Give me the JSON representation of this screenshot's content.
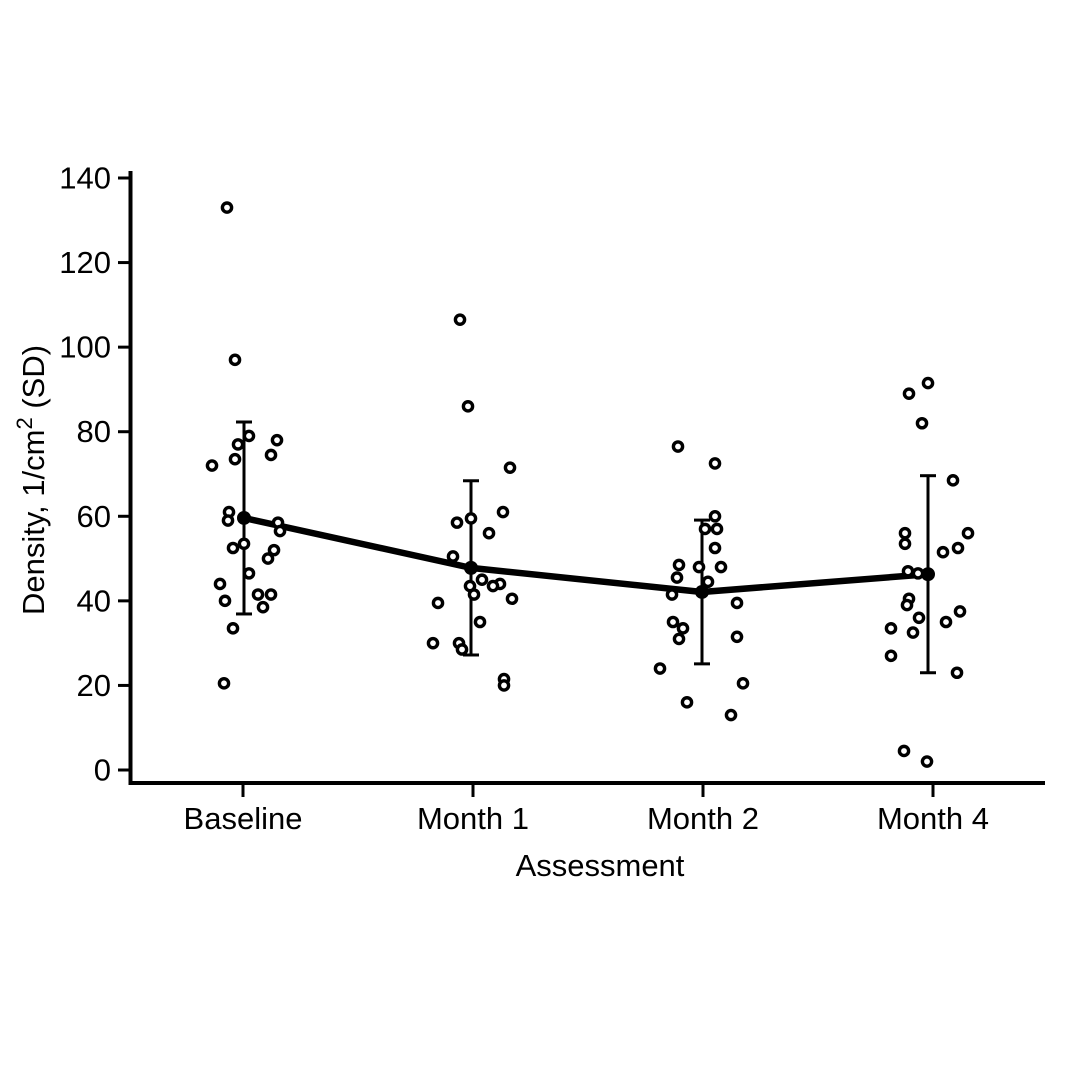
{
  "chart_data": {
    "type": "scatter",
    "xlabel": "Assessment",
    "ylabel": "Density, 1/cm² (SD)",
    "ylabel_parts": {
      "pre": "Density, 1/cm",
      "sup": "2",
      "post": " (SD)"
    },
    "categories": [
      "Baseline",
      "Month 1",
      "Month 2",
      "Month 4"
    ],
    "y_ticks": [
      0,
      20,
      40,
      60,
      80,
      100,
      120,
      140
    ],
    "ylim": [
      0,
      140
    ],
    "grid": false,
    "legend": false,
    "marker_style": "open-circle",
    "mean_series": {
      "name": "mean ± SD",
      "means": [
        59.6,
        47.8,
        42.1,
        46.3
      ],
      "sd": [
        22.7,
        20.6,
        17.0,
        23.3
      ]
    },
    "groups": [
      {
        "category": "Baseline",
        "mean": 59.6,
        "sd": 22.7,
        "mean_dx": 1,
        "points": [
          [
            -16,
            133
          ],
          [
            -8,
            97
          ],
          [
            6,
            79
          ],
          [
            34,
            78
          ],
          [
            -5,
            77
          ],
          [
            28,
            74.5
          ],
          [
            -8,
            73.5
          ],
          [
            -31,
            72
          ],
          [
            -14,
            61
          ],
          [
            -15,
            59
          ],
          [
            35,
            58.5
          ],
          [
            37,
            56.5
          ],
          [
            1,
            53.5
          ],
          [
            -10,
            52.5
          ],
          [
            31,
            52
          ],
          [
            25,
            50
          ],
          [
            6,
            46.5
          ],
          [
            -23,
            44
          ],
          [
            15,
            41.5
          ],
          [
            28,
            41.5
          ],
          [
            -18,
            40
          ],
          [
            20,
            38.5
          ],
          [
            -10,
            33.5
          ],
          [
            -19,
            20.5
          ]
        ]
      },
      {
        "category": "Month 1",
        "mean": 47.8,
        "sd": 20.6,
        "mean_dx": -2,
        "points": [
          [
            -13,
            106.5
          ],
          [
            -5,
            86
          ],
          [
            37,
            71.5
          ],
          [
            30,
            61
          ],
          [
            -2,
            59.5
          ],
          [
            -16,
            58.5
          ],
          [
            16,
            56
          ],
          [
            -20,
            50.5
          ],
          [
            9,
            45
          ],
          [
            27,
            44
          ],
          [
            -3,
            43.5
          ],
          [
            20,
            43.5
          ],
          [
            1,
            41.5
          ],
          [
            39,
            40.5
          ],
          [
            -35,
            39.5
          ],
          [
            7,
            35
          ],
          [
            -40,
            30
          ],
          [
            -14,
            30
          ],
          [
            -11,
            28.5
          ],
          [
            31,
            21.5
          ],
          [
            31,
            20
          ]
        ]
      },
      {
        "category": "Month 2",
        "mean": 42.1,
        "sd": 17.0,
        "mean_dx": -1,
        "points": [
          [
            -25,
            76.5
          ],
          [
            12,
            72.5
          ],
          [
            12,
            60
          ],
          [
            2,
            57
          ],
          [
            14,
            57
          ],
          [
            12,
            52.5
          ],
          [
            -24,
            48.5
          ],
          [
            -4,
            48
          ],
          [
            18,
            48
          ],
          [
            -26,
            45.5
          ],
          [
            5,
            44.5
          ],
          [
            -31,
            41.5
          ],
          [
            34,
            39.5
          ],
          [
            -30,
            35
          ],
          [
            -20,
            33.5
          ],
          [
            -24,
            31
          ],
          [
            34,
            31.5
          ],
          [
            -43,
            24
          ],
          [
            40,
            20.5
          ],
          [
            -16,
            16
          ],
          [
            28,
            13
          ]
        ]
      },
      {
        "category": "Month 4",
        "mean": 46.3,
        "sd": 23.3,
        "mean_dx": -5,
        "points": [
          [
            -5,
            91.5
          ],
          [
            -24,
            89
          ],
          [
            -11,
            82
          ],
          [
            20,
            68.5
          ],
          [
            -28,
            56
          ],
          [
            35,
            56
          ],
          [
            -28,
            53.5
          ],
          [
            25,
            52.5
          ],
          [
            10,
            51.5
          ],
          [
            -25,
            47
          ],
          [
            -15,
            46.5
          ],
          [
            -24,
            40.5
          ],
          [
            -26,
            39
          ],
          [
            27,
            37.5
          ],
          [
            -14,
            36
          ],
          [
            13,
            35
          ],
          [
            -42,
            33.5
          ],
          [
            -20,
            32.5
          ],
          [
            -42,
            27
          ],
          [
            24,
            23
          ],
          [
            -29,
            4.5
          ],
          [
            -6,
            2
          ]
        ]
      }
    ]
  }
}
